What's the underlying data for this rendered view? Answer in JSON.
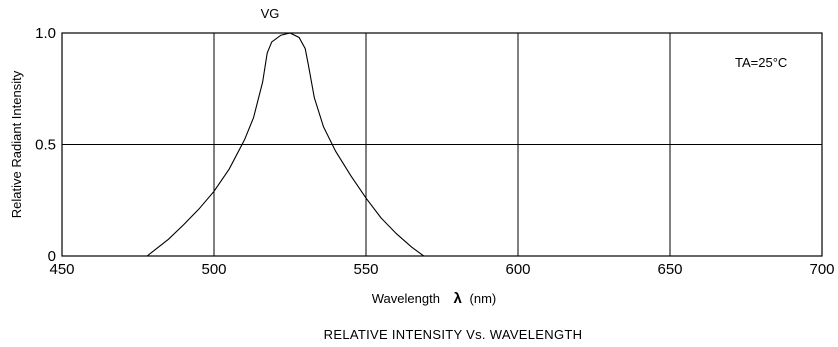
{
  "chart_data": {
    "type": "line",
    "title": "RELATIVE INTENSITY Vs. WAVELENGTH",
    "xlabel": "Wavelength",
    "xlabel_symbol": "λ",
    "xlabel_unit": "(nm)",
    "ylabel": "Relative Radiant Intensity",
    "xlim": [
      450,
      700
    ],
    "ylim": [
      0,
      1.0
    ],
    "x_ticks": [
      450,
      500,
      550,
      600,
      650,
      700
    ],
    "y_ticks": [
      {
        "value": 0,
        "label": "0"
      },
      {
        "value": 0.5,
        "label": "0.5"
      },
      {
        "value": 1.0,
        "label": "1.0"
      }
    ],
    "grid": true,
    "annotation": "TA=25°C",
    "series": [
      {
        "name": "VG",
        "x": [
          478,
          485,
          490,
          495,
          500,
          505,
          510,
          513,
          516,
          517.5,
          519,
          522,
          525,
          528,
          530,
          531,
          533,
          536,
          540,
          545,
          550,
          555,
          560,
          565,
          569
        ],
        "y": [
          0,
          0.075,
          0.14,
          0.21,
          0.29,
          0.39,
          0.52,
          0.62,
          0.78,
          0.91,
          0.96,
          0.99,
          1.0,
          0.98,
          0.93,
          0.86,
          0.71,
          0.58,
          0.47,
          0.36,
          0.26,
          0.17,
          0.1,
          0.04,
          0
        ]
      }
    ],
    "colors": {
      "line": "#000000",
      "grid": "#000000",
      "background": "#ffffff"
    }
  }
}
